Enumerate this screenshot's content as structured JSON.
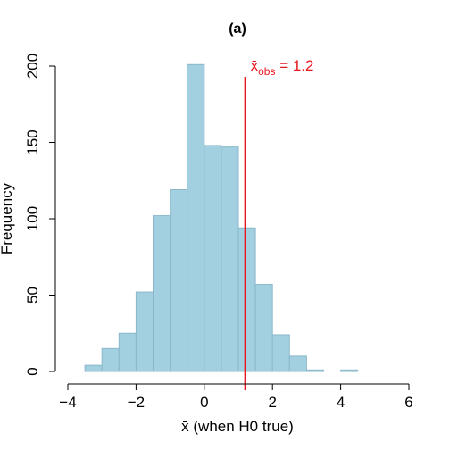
{
  "chart_data": {
    "type": "bar",
    "title": "(a)",
    "xlabel": "x̄ (when H0 true)",
    "ylabel": "Frequency",
    "xlim": [
      -4,
      6
    ],
    "ylim": [
      0,
      200
    ],
    "xticks": [
      -4,
      -2,
      0,
      2,
      4,
      6
    ],
    "yticks": [
      0,
      50,
      100,
      150,
      200
    ],
    "bin_width": 0.5,
    "bins": [
      {
        "start": -3.5,
        "end": -3.0,
        "count": 4
      },
      {
        "start": -3.0,
        "end": -2.5,
        "count": 15
      },
      {
        "start": -2.5,
        "end": -2.0,
        "count": 25
      },
      {
        "start": -2.0,
        "end": -1.5,
        "count": 52
      },
      {
        "start": -1.5,
        "end": -1.0,
        "count": 102
      },
      {
        "start": -1.0,
        "end": -0.5,
        "count": 119
      },
      {
        "start": -0.5,
        "end": 0.0,
        "count": 201
      },
      {
        "start": 0.0,
        "end": 0.5,
        "count": 148
      },
      {
        "start": 0.5,
        "end": 1.0,
        "count": 147
      },
      {
        "start": 1.0,
        "end": 1.5,
        "count": 94
      },
      {
        "start": 1.5,
        "end": 2.0,
        "count": 57
      },
      {
        "start": 2.0,
        "end": 2.5,
        "count": 24
      },
      {
        "start": 2.5,
        "end": 3.0,
        "count": 10
      },
      {
        "start": 3.0,
        "end": 3.5,
        "count": 1
      },
      {
        "start": 3.5,
        "end": 4.0,
        "count": 0
      },
      {
        "start": 4.0,
        "end": 4.5,
        "count": 1
      }
    ],
    "bar_color": "#a2d0e1",
    "bar_edge_color": "#8ab8ca",
    "vline": {
      "x": 1.2,
      "color": "#e8161e",
      "label_main": "x̄",
      "label_sub": "obs",
      "label_rest": " = 1.2"
    },
    "grid": false
  }
}
